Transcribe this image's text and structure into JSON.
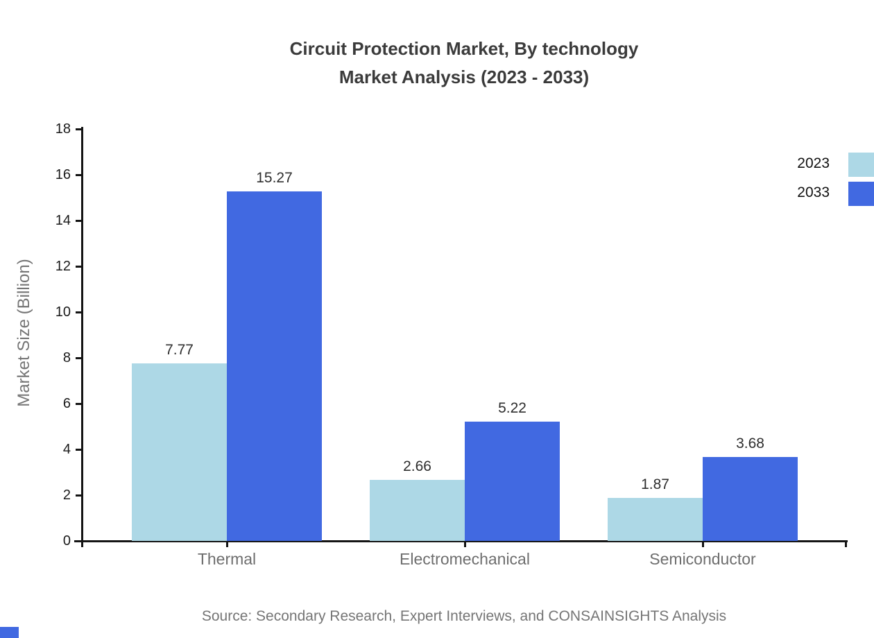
{
  "title": {
    "line1": "Circuit Protection Market, By technology",
    "line2": "Market Analysis (2023 - 2033)"
  },
  "y_axis": {
    "label": "Market Size (Billion)",
    "tick_labels": [
      "0",
      "2",
      "4",
      "6",
      "8",
      "10",
      "12",
      "14",
      "16",
      "18"
    ]
  },
  "legend": {
    "items": [
      {
        "label": "2023",
        "color": "#ADD8E6"
      },
      {
        "label": "2033",
        "color": "#4169E1"
      }
    ]
  },
  "source": "Source: Secondary Research, Expert Interviews, and CONSAINSIGHTS Analysis",
  "watermark_color": "#4169E1",
  "chart_data": {
    "type": "bar",
    "title": "Circuit Protection Market, By technology Market Analysis (2023 - 2033)",
    "categories": [
      "Thermal",
      "Electromechanical",
      "Semiconductor"
    ],
    "series": [
      {
        "name": "2023",
        "color": "#ADD8E6",
        "values": [
          7.77,
          2.66,
          1.87
        ]
      },
      {
        "name": "2033",
        "color": "#4169E1",
        "values": [
          15.27,
          5.22,
          3.68
        ]
      }
    ],
    "value_labels": [
      [
        "7.77",
        "2.66",
        "1.87"
      ],
      [
        "15.27",
        "5.22",
        "3.68"
      ]
    ],
    "xlabel": "",
    "ylabel": "Market Size (Billion)",
    "ylim": [
      0,
      18
    ],
    "ytick_step": 2,
    "grid": false,
    "legend_position": "top-right"
  }
}
